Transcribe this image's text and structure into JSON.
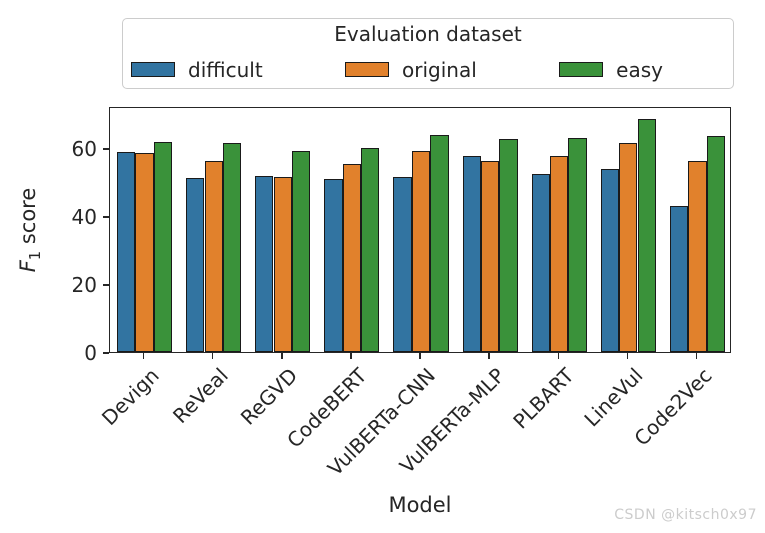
{
  "figure": {
    "watermark": "CSDN @kitsch0x97",
    "background": "#ffffff"
  },
  "legend": {
    "title": "Evaluation dataset",
    "entries": [
      {
        "label": "difficult",
        "color": "#3274A1"
      },
      {
        "label": "original",
        "color": "#E1812C"
      },
      {
        "label": "easy",
        "color": "#3A923A"
      }
    ]
  },
  "ylabel_parts": {
    "var": "F",
    "sub": "1",
    "rest": " score"
  },
  "chart_data": {
    "type": "bar",
    "title": "",
    "xlabel": "Model",
    "ylabel": "F1 score",
    "legend_title": "Evaluation dataset",
    "legend_position": "top-center-outside",
    "grid": false,
    "ylim": [
      0,
      72.4
    ],
    "yticks": [
      0,
      20,
      40,
      60
    ],
    "bar_edge_color": "#1a1a1a",
    "categories": [
      "Devign",
      "ReVeal",
      "ReGVD",
      "CodeBERT",
      "VulBERTa-CNN",
      "VulBERTa-MLP",
      "PLBART",
      "LineVul",
      "Code2Vec"
    ],
    "series": [
      {
        "name": "difficult",
        "color": "#3274A1",
        "values": [
          59.0,
          51.1,
          51.8,
          50.9,
          51.6,
          57.7,
          52.4,
          53.8,
          43.0
        ]
      },
      {
        "name": "original",
        "color": "#E1812C",
        "values": [
          58.5,
          56.3,
          51.6,
          55.2,
          59.1,
          56.1,
          57.7,
          61.6,
          56.3
        ]
      },
      {
        "name": "easy",
        "color": "#3A923A",
        "values": [
          61.8,
          61.5,
          59.2,
          60.1,
          63.9,
          62.6,
          62.9,
          68.5,
          63.7
        ]
      }
    ]
  }
}
